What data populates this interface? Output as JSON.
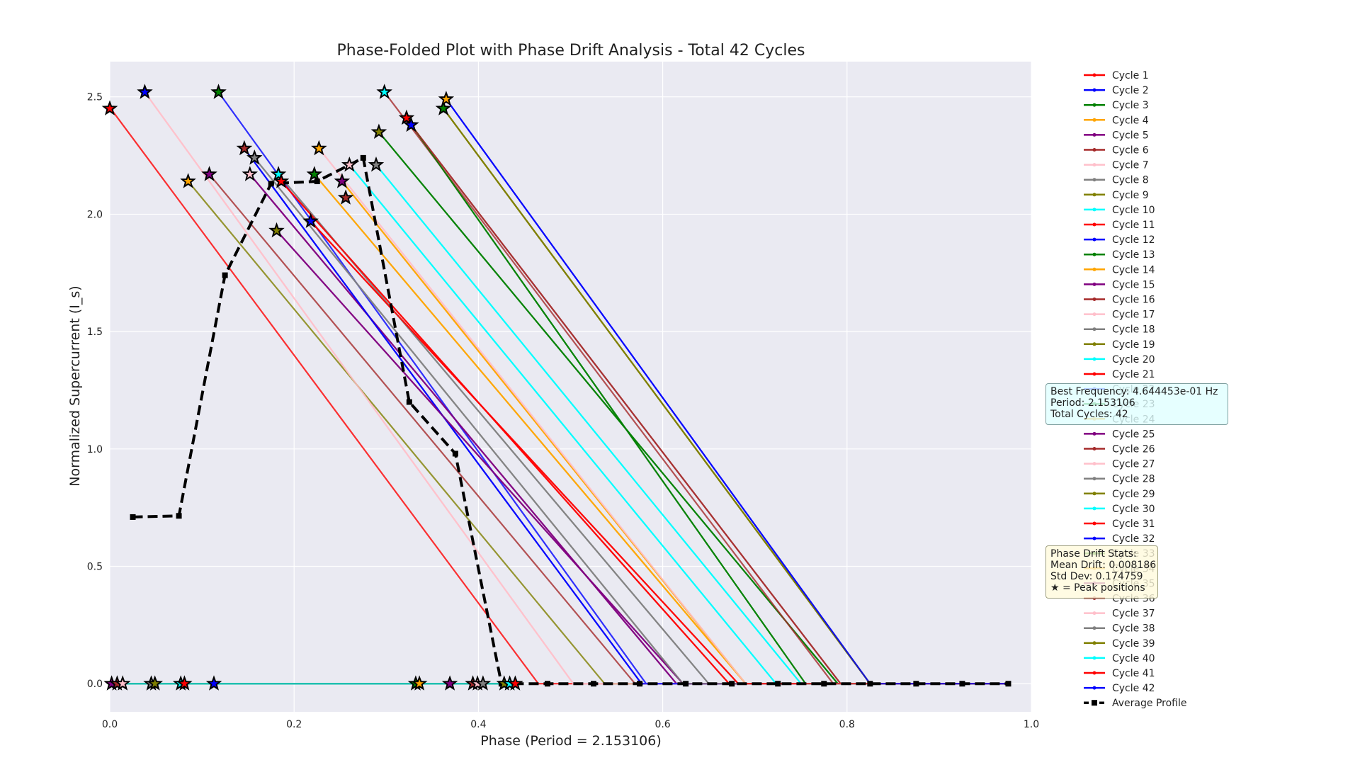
{
  "chart_data": {
    "type": "line",
    "title": "Phase-Folded Plot with Phase Drift Analysis - Total 42 Cycles",
    "xlabel": "Phase (Period = 2.153106)",
    "ylabel": "Normalized Supercurrent (I_s)",
    "xlim": [
      0,
      1
    ],
    "ylim": [
      -0.12,
      2.65
    ],
    "xticks": [
      "0.0",
      "0.2",
      "0.4",
      "0.6",
      "0.8",
      "1.0"
    ],
    "yticks": [
      "0.0",
      "0.5",
      "1.0",
      "1.5",
      "2.0",
      "2.5"
    ],
    "grid": true,
    "legend_position": "right-outside",
    "series_colors": [
      "#ff0000",
      "#0000ff",
      "#008000",
      "#ffa500",
      "#800080",
      "#a52a2a",
      "#ffc0cb",
      "#808080",
      "#808000",
      "#00ffff"
    ],
    "cycles": [
      {
        "name": "Cycle 1",
        "start_phase": 0.001,
        "peak": 2.45,
        "zero_phase": 0.465,
        "flat_phase": 0.0
      },
      {
        "name": "Cycle 2",
        "start_phase": 0.118,
        "peak": 2.52,
        "zero_phase": 0.582,
        "flat_phase": 0.0
      },
      {
        "name": "Cycle 3",
        "start_phase": 0.292,
        "peak": 2.35,
        "zero_phase": 0.79,
        "flat_phase": 0.005
      },
      {
        "name": "Cycle 4",
        "start_phase": 0.222,
        "peak": 2.17,
        "zero_phase": 0.69,
        "flat_phase": 0.01
      },
      {
        "name": "Cycle 5",
        "start_phase": 0.152,
        "peak": 2.17,
        "zero_phase": 0.615,
        "flat_phase": 0.005
      },
      {
        "name": "Cycle 6",
        "start_phase": 0.108,
        "peak": 2.17,
        "zero_phase": 0.57,
        "flat_phase": 0.0
      },
      {
        "name": "Cycle 7",
        "start_phase": 0.038,
        "peak": 2.52,
        "zero_phase": 0.503,
        "flat_phase": 0.0
      },
      {
        "name": "Cycle 8",
        "start_phase": 0.183,
        "peak": 2.17,
        "zero_phase": 0.65,
        "flat_phase": 0.01
      },
      {
        "name": "Cycle 9",
        "start_phase": 0.085,
        "peak": 2.14,
        "zero_phase": 0.537,
        "flat_phase": 0.0
      },
      {
        "name": "Cycle 10",
        "start_phase": 0.26,
        "peak": 2.21,
        "zero_phase": 0.723,
        "flat_phase": 0.01
      },
      {
        "name": "Cycle 11",
        "start_phase": 0.186,
        "peak": 2.14,
        "zero_phase": 0.672,
        "flat_phase": 0.01
      },
      {
        "name": "Cycle 12",
        "start_phase": 0.146,
        "peak": 2.28,
        "zero_phase": 0.577,
        "flat_phase": 0.005
      },
      {
        "name": "Cycle 13",
        "start_phase": 0.322,
        "peak": 2.41,
        "zero_phase": 0.755,
        "flat_phase": 0.005
      },
      {
        "name": "Cycle 14",
        "start_phase": 0.252,
        "peak": 2.14,
        "zero_phase": 0.69,
        "flat_phase": 0.01
      },
      {
        "name": "Cycle 15",
        "start_phase": 0.181,
        "peak": 1.93,
        "zero_phase": 0.622,
        "flat_phase": 0.005
      },
      {
        "name": "Cycle 16",
        "start_phase": 0.327,
        "peak": 2.38,
        "zero_phase": 0.793,
        "flat_phase": 0.005
      },
      {
        "name": "Cycle 17",
        "start_phase": 0.227,
        "peak": 2.28,
        "zero_phase": 0.69,
        "flat_phase": 0.005
      },
      {
        "name": "Cycle 18",
        "start_phase": 0.157,
        "peak": 2.24,
        "zero_phase": 0.622,
        "flat_phase": 0.005
      },
      {
        "name": "Cycle 19",
        "start_phase": 0.362,
        "peak": 2.45,
        "zero_phase": 0.825,
        "flat_phase": 0.005
      },
      {
        "name": "Cycle 20",
        "start_phase": 0.289,
        "peak": 2.21,
        "zero_phase": 0.75,
        "flat_phase": 0.01
      },
      {
        "name": "Cycle 21",
        "start_phase": 0.218,
        "peak": 1.97,
        "zero_phase": 0.682,
        "flat_phase": 0.01
      },
      {
        "name": "Cycle 22",
        "start_phase": 0.365,
        "peak": 2.49,
        "zero_phase": 0.825,
        "flat_phase": 0.005
      },
      {
        "name": "Cycle 23",
        "start_phase": 0.292,
        "peak": 2.35,
        "zero_phase": 0.79,
        "flat_phase": 0.005
      },
      {
        "name": "Cycle 24",
        "start_phase": 0.222,
        "peak": 2.17,
        "zero_phase": 0.69,
        "flat_phase": 0.01
      },
      {
        "name": "Cycle 25",
        "start_phase": 0.152,
        "peak": 2.17,
        "zero_phase": 0.615,
        "flat_phase": 0.005
      },
      {
        "name": "Cycle 26",
        "start_phase": 0.298,
        "peak": 2.52,
        "zero_phase": 0.785,
        "flat_phase": 0.005
      },
      {
        "name": "Cycle 27",
        "start_phase": 0.038,
        "peak": 2.52,
        "zero_phase": 0.503,
        "flat_phase": 0.0
      },
      {
        "name": "Cycle 28",
        "start_phase": 0.183,
        "peak": 2.17,
        "zero_phase": 0.65,
        "flat_phase": 0.01
      },
      {
        "name": "Cycle 29",
        "start_phase": 0.362,
        "peak": 2.45,
        "zero_phase": 0.825,
        "flat_phase": 0.005
      },
      {
        "name": "Cycle 30",
        "start_phase": 0.26,
        "peak": 2.21,
        "zero_phase": 0.723,
        "flat_phase": 0.01
      },
      {
        "name": "Cycle 31",
        "start_phase": 0.186,
        "peak": 2.14,
        "zero_phase": 0.672,
        "flat_phase": 0.01
      },
      {
        "name": "Cycle 32",
        "start_phase": 0.146,
        "peak": 2.28,
        "zero_phase": 0.577,
        "flat_phase": 0.005
      },
      {
        "name": "Cycle 33",
        "start_phase": 0.322,
        "peak": 2.41,
        "zero_phase": 0.755,
        "flat_phase": 0.005
      },
      {
        "name": "Cycle 34",
        "start_phase": 0.252,
        "peak": 2.14,
        "zero_phase": 0.69,
        "flat_phase": 0.01
      },
      {
        "name": "Cycle 35",
        "start_phase": 0.181,
        "peak": 1.93,
        "zero_phase": 0.622,
        "flat_phase": 0.005
      },
      {
        "name": "Cycle 36",
        "start_phase": 0.327,
        "peak": 2.38,
        "zero_phase": 0.793,
        "flat_phase": 0.005
      },
      {
        "name": "Cycle 37",
        "start_phase": 0.227,
        "peak": 2.28,
        "zero_phase": 0.69,
        "flat_phase": 0.005
      },
      {
        "name": "Cycle 38",
        "start_phase": 0.157,
        "peak": 2.24,
        "zero_phase": 0.622,
        "flat_phase": 0.005
      },
      {
        "name": "Cycle 39",
        "start_phase": 0.362,
        "peak": 2.45,
        "zero_phase": 0.825,
        "flat_phase": 0.005
      },
      {
        "name": "Cycle 40",
        "start_phase": 0.289,
        "peak": 2.21,
        "zero_phase": 0.75,
        "flat_phase": 0.01
      },
      {
        "name": "Cycle 41",
        "start_phase": 0.218,
        "peak": 1.97,
        "zero_phase": 0.682,
        "flat_phase": 0.01
      },
      {
        "name": "Cycle 42",
        "start_phase": 0.365,
        "peak": 2.49,
        "zero_phase": 0.825,
        "flat_phase": 0.005
      }
    ],
    "peak_stars": [
      {
        "x": 0.0,
        "y": 2.45
      },
      {
        "x": 0.038,
        "y": 2.52
      },
      {
        "x": 0.118,
        "y": 2.52
      },
      {
        "x": 0.085,
        "y": 2.14
      },
      {
        "x": 0.108,
        "y": 2.17
      },
      {
        "x": 0.146,
        "y": 2.28
      },
      {
        "x": 0.152,
        "y": 2.17
      },
      {
        "x": 0.157,
        "y": 2.24
      },
      {
        "x": 0.181,
        "y": 1.93
      },
      {
        "x": 0.183,
        "y": 2.17
      },
      {
        "x": 0.186,
        "y": 2.14
      },
      {
        "x": 0.218,
        "y": 1.97
      },
      {
        "x": 0.222,
        "y": 2.17
      },
      {
        "x": 0.227,
        "y": 2.28
      },
      {
        "x": 0.252,
        "y": 2.14
      },
      {
        "x": 0.256,
        "y": 2.07
      },
      {
        "x": 0.26,
        "y": 2.21
      },
      {
        "x": 0.289,
        "y": 2.21
      },
      {
        "x": 0.292,
        "y": 2.35
      },
      {
        "x": 0.298,
        "y": 2.52
      },
      {
        "x": 0.322,
        "y": 2.41
      },
      {
        "x": 0.327,
        "y": 2.38
      },
      {
        "x": 0.362,
        "y": 2.45
      },
      {
        "x": 0.365,
        "y": 2.49
      },
      {
        "x": 0.002,
        "y": 0.0
      },
      {
        "x": 0.008,
        "y": 0.0
      },
      {
        "x": 0.014,
        "y": 0.0
      },
      {
        "x": 0.045,
        "y": 0.0
      },
      {
        "x": 0.049,
        "y": 0.0
      },
      {
        "x": 0.077,
        "y": 0.0
      },
      {
        "x": 0.081,
        "y": 0.0
      },
      {
        "x": 0.113,
        "y": 0.0
      },
      {
        "x": 0.332,
        "y": 0.0
      },
      {
        "x": 0.336,
        "y": 0.0
      },
      {
        "x": 0.369,
        "y": 0.0
      },
      {
        "x": 0.394,
        "y": 0.0
      },
      {
        "x": 0.399,
        "y": 0.0
      },
      {
        "x": 0.405,
        "y": 0.0
      },
      {
        "x": 0.428,
        "y": 0.0
      },
      {
        "x": 0.434,
        "y": 0.0
      },
      {
        "x": 0.44,
        "y": 0.0
      }
    ],
    "average_profile": {
      "name": "Average Profile",
      "x": [
        0.025,
        0.075,
        0.125,
        0.175,
        0.225,
        0.275,
        0.325,
        0.375,
        0.425,
        0.475,
        0.525,
        0.575,
        0.625,
        0.675,
        0.725,
        0.775,
        0.825,
        0.875,
        0.925,
        0.975
      ],
      "y": [
        0.71,
        0.715,
        1.74,
        2.13,
        2.14,
        2.24,
        1.2,
        0.98,
        0.0,
        0.0,
        0.0,
        0.0,
        0.0,
        0.0,
        0.0,
        0.0,
        0.0,
        0.0,
        0.0,
        0.0
      ]
    },
    "legend_entries": [
      "Cycle 1",
      "Cycle 2",
      "Cycle 3",
      "Cycle 4",
      "Cycle 5",
      "Cycle 6",
      "Cycle 7",
      "Cycle 8",
      "Cycle 9",
      "Cycle 10",
      "Cycle 11",
      "Cycle 12",
      "Cycle 13",
      "Cycle 14",
      "Cycle 15",
      "Cycle 16",
      "Cycle 17",
      "Cycle 18",
      "Cycle 19",
      "Cycle 20",
      "Cycle 21",
      "Cycle 22",
      "Cycle 23",
      "Cycle 24",
      "Cycle 25",
      "Cycle 26",
      "Cycle 27",
      "Cycle 28",
      "Cycle 29",
      "Cycle 30",
      "Cycle 31",
      "Cycle 32",
      "Cycle 33",
      "Cycle 34",
      "Cycle 35",
      "Cycle 36",
      "Cycle 37",
      "Cycle 38",
      "Cycle 39",
      "Cycle 40",
      "Cycle 41",
      "Cycle 42",
      "Average Profile"
    ]
  },
  "annotations": {
    "frequency_box": "Best Frequency: 4.644453e-01 Hz\nPeriod: 2.153106\nTotal Cycles: 42",
    "drift_box": "Phase Drift Stats:\nMean Drift: 0.008186\nStd Dev: 0.174759\n★ = Peak positions"
  }
}
